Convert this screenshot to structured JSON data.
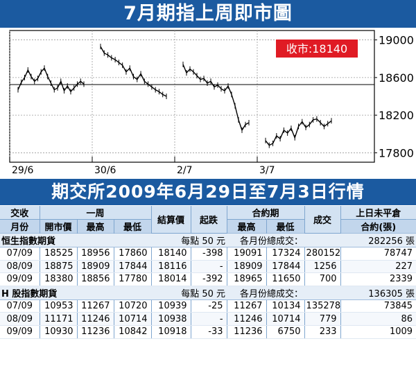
{
  "chart_title": "7月期指上周即市圖",
  "table_title": "期交所2009年6月29日至7月3日行情",
  "chart_data": {
    "type": "line",
    "close_label": "收市:18140",
    "x_tick_labels": [
      "29/6",
      "30/6",
      "2/7",
      "3/7"
    ],
    "y_tick_labels": [
      "19000",
      "18600",
      "18200",
      "17800"
    ],
    "ylim": [
      17700,
      19100
    ],
    "yticks": [
      19000,
      18600,
      18200,
      17800
    ],
    "reference_line": 18525,
    "grid": true,
    "sessions": [
      {
        "label": "29/6",
        "values": [
          18470,
          18550,
          18600,
          18680,
          18610,
          18560,
          18590,
          18660,
          18700,
          18610,
          18540,
          18470,
          18490,
          18560,
          18460,
          18510,
          18450,
          18490,
          18530,
          18560,
          18530
        ]
      },
      {
        "label": "30/6",
        "values": [
          18930,
          18860,
          18840,
          18810,
          18790,
          18760,
          18730,
          18660,
          18700,
          18610,
          18580,
          18640,
          18560,
          18530,
          18500,
          18470,
          18450,
          18420,
          18400
        ]
      },
      {
        "label": "2/7",
        "values": [
          18740,
          18650,
          18690,
          18660,
          18620,
          18580,
          18590,
          18540,
          18560,
          18500,
          18520,
          18480,
          18460,
          18510,
          18420,
          18300,
          18150,
          18040,
          18100,
          18120
        ]
      },
      {
        "label": "3/7",
        "values": [
          17930,
          17880,
          17900,
          17980,
          17950,
          18040,
          18010,
          18060,
          17960,
          18080,
          18130,
          18070,
          18100,
          18150,
          18160,
          18120,
          18080,
          18110,
          18140
        ]
      }
    ]
  },
  "table": {
    "header1": {
      "contract": "交收",
      "week": "一周",
      "settle": "結算價",
      "change": "起跌",
      "contract_period": "合約期",
      "volume": "成交",
      "open_interest": "上日未平倉"
    },
    "header2": {
      "month": "月份",
      "open": "開市價",
      "high": "最高",
      "low": "最低",
      "cp_high": "最高",
      "cp_low": "最低",
      "oi_unit": "合約(張)"
    },
    "groups": [
      {
        "name": "恒生指數期貨",
        "unit": "每點 50 元",
        "total_label": "各月份總成交：",
        "total": "282256 張",
        "rows": [
          [
            "07/09",
            "18525",
            "18956",
            "17860",
            "18140",
            "-398",
            "19091",
            "17324",
            "280152",
            "78747"
          ],
          [
            "08/09",
            "18875",
            "18909",
            "17844",
            "18116",
            "-",
            "18909",
            "17844",
            "1256",
            "227"
          ],
          [
            "09/09",
            "18380",
            "18856",
            "17780",
            "18014",
            "-392",
            "18965",
            "11650",
            "700",
            "2339"
          ]
        ]
      },
      {
        "name": "H 股指數期貨",
        "unit": "每點 50 元",
        "total_label": "各月份總成交：",
        "total": "136305 張",
        "rows": [
          [
            "07/09",
            "10953",
            "11267",
            "10720",
            "10939",
            "-25",
            "11267",
            "10134",
            "135278",
            "73845"
          ],
          [
            "08/09",
            "11171",
            "11246",
            "10714",
            "10938",
            "-",
            "11246",
            "10714",
            "779",
            "86"
          ],
          [
            "09/09",
            "10930",
            "11236",
            "10842",
            "10918",
            "-33",
            "11236",
            "6750",
            "233",
            "1009"
          ]
        ]
      }
    ]
  },
  "colors": {
    "banner": "#1b5aa0",
    "close_label": "#e01b24",
    "line": "#000000"
  }
}
